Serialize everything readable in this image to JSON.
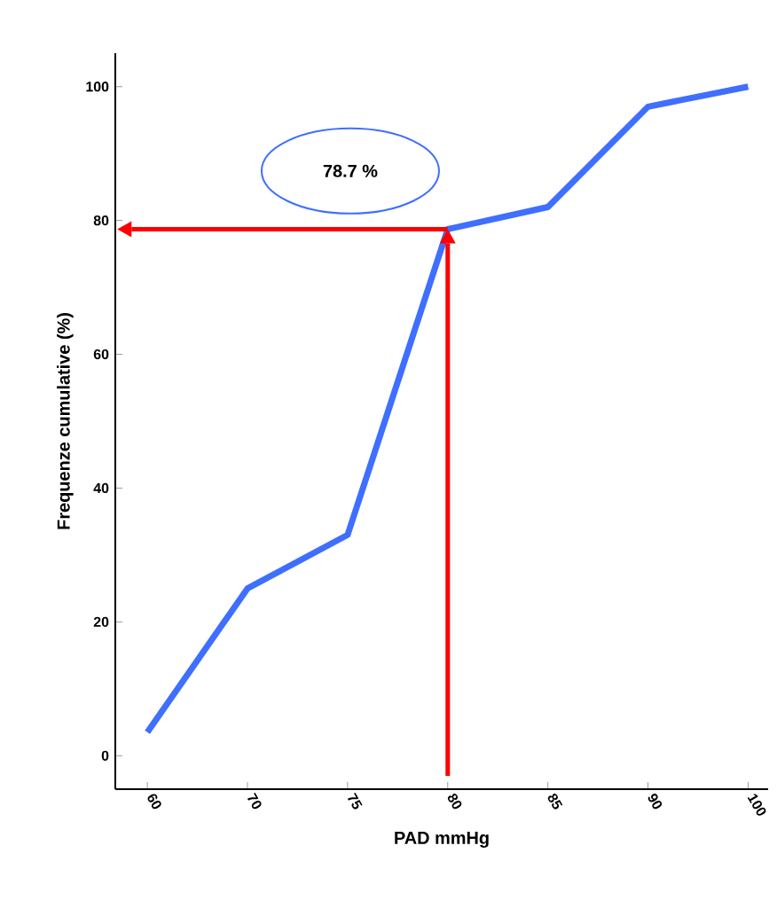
{
  "chart_data": {
    "type": "line",
    "xlabel": "PAD mmHg",
    "ylabel": "Frequenze cumulative (%)",
    "categories": [
      "60",
      "70",
      "75",
      "80",
      "85",
      "90",
      "100"
    ],
    "values": [
      3.5,
      25,
      33,
      78.7,
      82,
      97,
      100
    ],
    "color": "#3f6fff",
    "marker": "none",
    "line_style": "solid",
    "grid": false,
    "ref_lines": [
      {
        "axis": "x",
        "value": "80",
        "color": "#ff0000"
      },
      {
        "axis": "y",
        "value": 78.7,
        "color": "#ff0000"
      }
    ],
    "ylim": [
      -5,
      105
    ],
    "yticks": [
      0,
      20,
      40,
      60,
      80,
      100
    ],
    "annotations": [
      "78.7 %"
    ]
  }
}
